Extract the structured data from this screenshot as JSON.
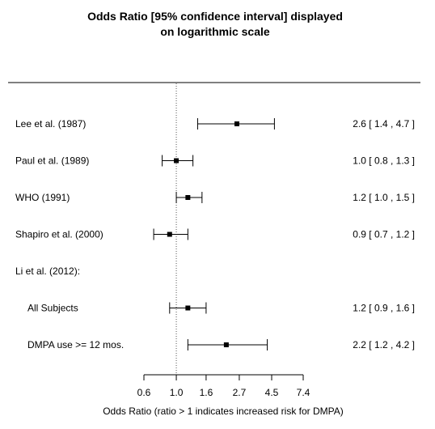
{
  "chart_data": {
    "type": "forest",
    "title": [
      "Odds Ratio [95% confidence interval] displayed",
      "on logarithmic scale"
    ],
    "xlabel": "Odds Ratio (ratio > 1 indicates increased risk for DMPA)",
    "x_scale": "log",
    "reference_line": 1.0,
    "xlim": [
      0.6,
      7.4
    ],
    "x_ticks": [
      0.6,
      1.0,
      1.6,
      2.7,
      4.5,
      7.4
    ],
    "x_tick_labels": [
      "0.6",
      "1.0",
      "1.6",
      "2.7",
      "4.5",
      "7.4"
    ],
    "rows": [
      {
        "label": "Lee et al. (1987)",
        "or": 2.6,
        "lo": 1.4,
        "hi": 4.7,
        "ci_text": "2.6 [ 1.4 , 4.7 ]",
        "indent": false
      },
      {
        "label": "Paul et al. (1989)",
        "or": 1.0,
        "lo": 0.8,
        "hi": 1.3,
        "ci_text": "1.0 [ 0.8 , 1.3 ]",
        "indent": false
      },
      {
        "label": "WHO (1991)",
        "or": 1.2,
        "lo": 1.0,
        "hi": 1.5,
        "ci_text": "1.2 [ 1.0 , 1.5 ]",
        "indent": false
      },
      {
        "label": "Shapiro et al. (2000)",
        "or": 0.9,
        "lo": 0.7,
        "hi": 1.2,
        "ci_text": "0.9 [ 0.7 , 1.2 ]",
        "indent": false
      },
      {
        "label": "Li et al. (2012):",
        "or": null,
        "lo": null,
        "hi": null,
        "ci_text": "",
        "indent": false
      },
      {
        "label": "All Subjects",
        "or": 1.2,
        "lo": 0.9,
        "hi": 1.6,
        "ci_text": "1.2 [ 0.9 , 1.6 ]",
        "indent": true
      },
      {
        "label": "DMPA use >= 12 mos.",
        "or": 2.2,
        "lo": 1.2,
        "hi": 4.2,
        "ci_text": "2.2 [ 1.2 , 4.2 ]",
        "indent": true
      }
    ]
  }
}
